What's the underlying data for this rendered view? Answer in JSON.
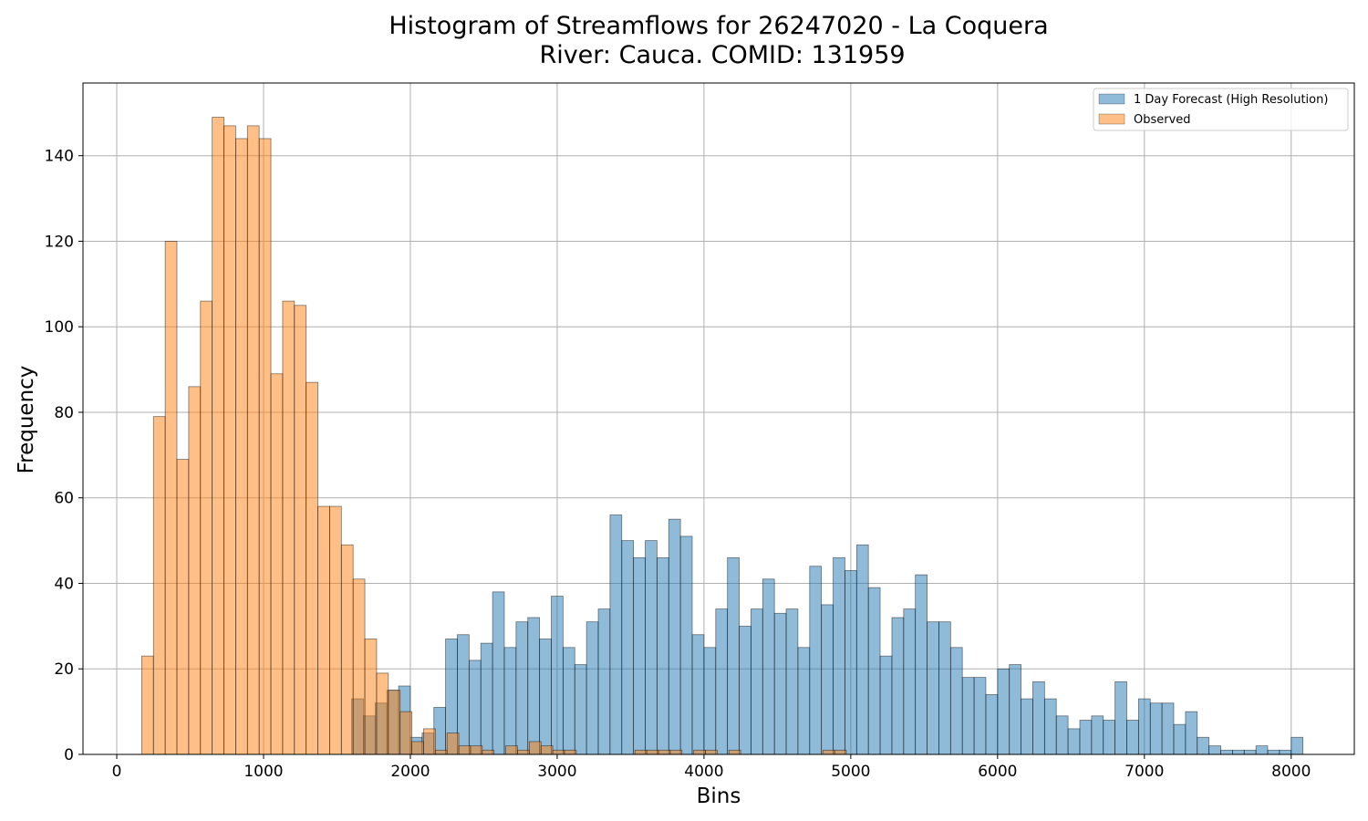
{
  "chart_data": {
    "type": "bar",
    "title_line1": "Histogram of Streamflows for 26247020 - La Coquera",
    "title_line2": "River: Cauca. COMID: 131959",
    "xlabel": "Bins",
    "ylabel": "Frequency",
    "xlim": [
      -230,
      8430
    ],
    "ylim": [
      0,
      157
    ],
    "x_ticks": [
      0,
      1000,
      2000,
      3000,
      4000,
      5000,
      6000,
      7000,
      8000
    ],
    "y_ticks": [
      0,
      20,
      40,
      60,
      80,
      100,
      120,
      140
    ],
    "grid": true,
    "legend_position": "upper right",
    "bin_width": 80,
    "series": [
      {
        "name": "1 Day Forecast (High Resolution)",
        "color": "#1f77b4",
        "start": 1600,
        "values": [
          13,
          9,
          12,
          15,
          16,
          4,
          5,
          11,
          27,
          28,
          22,
          26,
          38,
          25,
          31,
          32,
          27,
          37,
          25,
          21,
          31,
          34,
          56,
          50,
          46,
          50,
          46,
          55,
          51,
          28,
          25,
          34,
          46,
          30,
          34,
          41,
          33,
          34,
          25,
          44,
          35,
          46,
          43,
          49,
          39,
          23,
          32,
          34,
          42,
          31,
          31,
          25,
          18,
          18,
          14,
          20,
          21,
          13,
          17,
          13,
          9,
          6,
          8,
          9,
          8,
          17,
          8,
          13,
          12,
          12,
          7,
          10,
          4,
          2,
          1,
          1,
          1,
          2,
          1,
          1,
          4
        ]
      },
      {
        "name": "Observed",
        "color": "#ff7f0e",
        "start": 170,
        "values": [
          23,
          79,
          120,
          69,
          86,
          106,
          149,
          147,
          144,
          147,
          144,
          89,
          106,
          105,
          87,
          58,
          58,
          49,
          41,
          27,
          19,
          15,
          10,
          3,
          6,
          1,
          5,
          2,
          2,
          1,
          0,
          2,
          1,
          3,
          2,
          1,
          1,
          0,
          0,
          0,
          0,
          0,
          1,
          1,
          1,
          1,
          0,
          1,
          1,
          0,
          1,
          0,
          0,
          0,
          0,
          0,
          0,
          0,
          1,
          1
        ]
      }
    ]
  }
}
